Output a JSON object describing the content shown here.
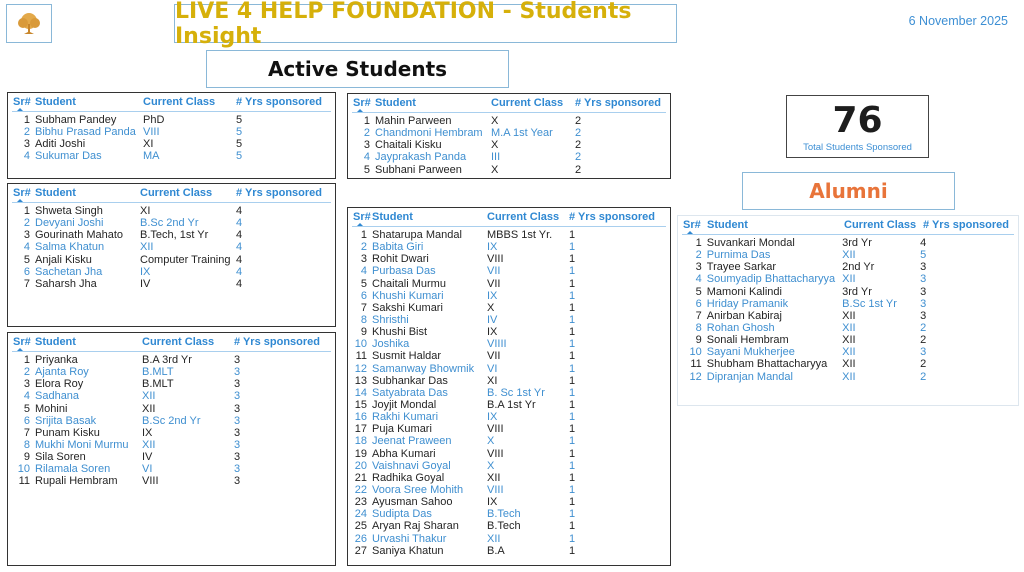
{
  "header": {
    "title": "LIVE 4 HELP FOUNDATION - Students Insight",
    "date": "6 November 2025",
    "active_heading": "Active Students",
    "alumni_heading": "Alumni"
  },
  "kpi": {
    "value": "76",
    "label": "Total Students Sponsored"
  },
  "colors": {
    "title": "#d6b00a",
    "accent_blue": "#3d8fd4",
    "alumni": "#e8743a"
  },
  "columns": [
    "Sr#",
    "Student",
    "Current Class",
    "# Yrs sponsored"
  ],
  "tables": {
    "yrs5": [
      [
        "1",
        "Subham Pandey",
        "PhD",
        "5"
      ],
      [
        "2",
        "Bibhu Prasad Panda",
        "VIII",
        "5"
      ],
      [
        "3",
        "Aditi Joshi",
        "XI",
        "5"
      ],
      [
        "4",
        "Sukumar Das",
        "MA",
        "5"
      ]
    ],
    "yrs4": [
      [
        "1",
        "Shweta Singh",
        "XI",
        "4"
      ],
      [
        "2",
        "Devyani Joshi",
        "B.Sc 2nd Yr",
        "4"
      ],
      [
        "3",
        "Gourinath Mahato",
        "B.Tech, 1st Yr",
        "4"
      ],
      [
        "4",
        "Salma Khatun",
        "XII",
        "4"
      ],
      [
        "5",
        "Anjali Kisku",
        "Computer Training",
        "4"
      ],
      [
        "6",
        "Sachetan Jha",
        "IX",
        "4"
      ],
      [
        "7",
        "Saharsh Jha",
        "IV",
        "4"
      ]
    ],
    "yrs3": [
      [
        "1",
        "Priyanka",
        "B.A 3rd Yr",
        "3"
      ],
      [
        "2",
        "Ajanta Roy",
        "B.MLT",
        "3"
      ],
      [
        "3",
        "Elora Roy",
        "B.MLT",
        "3"
      ],
      [
        "4",
        "Sadhana",
        "XII",
        "3"
      ],
      [
        "5",
        "Mohini",
        "XII",
        "3"
      ],
      [
        "6",
        "Srijita Basak",
        "B.Sc 2nd Yr",
        "3"
      ],
      [
        "7",
        "Punam Kisku",
        "IX",
        "3"
      ],
      [
        "8",
        "Mukhi Moni Murmu",
        "XII",
        "3"
      ],
      [
        "9",
        "Sila Soren",
        "IV",
        "3"
      ],
      [
        "10",
        "Rilamala Soren",
        "VI",
        "3"
      ],
      [
        "11",
        "Rupali Hembram",
        "VIII",
        "3"
      ]
    ],
    "yrs2": [
      [
        "1",
        "Mahin Parween",
        "X",
        "2"
      ],
      [
        "2",
        "Chandmoni Hembram",
        "M.A 1st Year",
        "2"
      ],
      [
        "3",
        "Chaitali Kisku",
        "X",
        "2"
      ],
      [
        "4",
        "Jayprakash Panda",
        "III",
        "2"
      ],
      [
        "5",
        "Subhani Parween",
        "X",
        "2"
      ]
    ],
    "yrs1": [
      [
        "1",
        "Shatarupa Mandal",
        "MBBS 1st Yr.",
        "1"
      ],
      [
        "2",
        "Babita Giri",
        "IX",
        "1"
      ],
      [
        "3",
        "Rohit Dwari",
        "VIII",
        "1"
      ],
      [
        "4",
        "Purbasa Das",
        "VII",
        "1"
      ],
      [
        "5",
        "Chaitali Murmu",
        "VII",
        "1"
      ],
      [
        "6",
        "Khushi Kumari",
        "IX",
        "1"
      ],
      [
        "7",
        "Sakshi Kumari",
        "X",
        "1"
      ],
      [
        "8",
        "Shristhi",
        "IV",
        "1"
      ],
      [
        "9",
        "Khushi Bist",
        "IX",
        "1"
      ],
      [
        "10",
        "Joshika",
        "VIIII",
        "1"
      ],
      [
        "11",
        "Susmit Haldar",
        "VII",
        "1"
      ],
      [
        "12",
        "Samanway Bhowmik",
        "VI",
        "1"
      ],
      [
        "13",
        "Subhankar Das",
        "XI",
        "1"
      ],
      [
        "14",
        "Satyabrata Das",
        "B. Sc 1st Yr",
        "1"
      ],
      [
        "15",
        "Joyjit Mondal",
        "B.A 1st Yr",
        "1"
      ],
      [
        "16",
        "Rakhi Kumari",
        "IX",
        "1"
      ],
      [
        "17",
        "Puja Kumari",
        "VIII",
        "1"
      ],
      [
        "18",
        "Jeenat Praween",
        "X",
        "1"
      ],
      [
        "19",
        "Abha Kumari",
        "VIII",
        "1"
      ],
      [
        "20",
        "Vaishnavi Goyal",
        "X",
        "1"
      ],
      [
        "21",
        "Radhika Goyal",
        "XII",
        "1"
      ],
      [
        "22",
        "Voora Sree Mohith",
        "VIII",
        "1"
      ],
      [
        "23",
        "Ayusman Sahoo",
        "IX",
        "1"
      ],
      [
        "24",
        "Sudipta Das",
        "B.Tech",
        "1"
      ],
      [
        "25",
        "Aryan Raj Sharan",
        "B.Tech",
        "1"
      ],
      [
        "26",
        "Urvashi Thakur",
        "XII",
        "1"
      ],
      [
        "27",
        "Saniya Khatun",
        "B.A",
        "1"
      ]
    ],
    "alumni": [
      [
        "1",
        "Suvankari Mondal",
        "3rd Yr",
        "4"
      ],
      [
        "2",
        "Purnima Das",
        "XII",
        "5"
      ],
      [
        "3",
        "Trayee Sarkar",
        "2nd Yr",
        "3"
      ],
      [
        "4",
        "Soumyadip Bhattacharyya",
        "XII",
        "3"
      ],
      [
        "5",
        "Mamoni Kalindi",
        "3rd Yr",
        "3"
      ],
      [
        "6",
        "Hriday Pramanik",
        "B.Sc 1st Yr",
        "3"
      ],
      [
        "7",
        "Anirban Kabiraj",
        "XII",
        "3"
      ],
      [
        "8",
        "Rohan Ghosh",
        "XII",
        "2"
      ],
      [
        "9",
        "Sonali Hembram",
        "XII",
        "2"
      ],
      [
        "10",
        "Sayani Mukherjee",
        "XII",
        "3"
      ],
      [
        "11",
        "Shubham Bhattacharyya",
        "XII",
        "2"
      ],
      [
        "12",
        "Dipranjan Mandal",
        "XII",
        "2"
      ]
    ]
  }
}
